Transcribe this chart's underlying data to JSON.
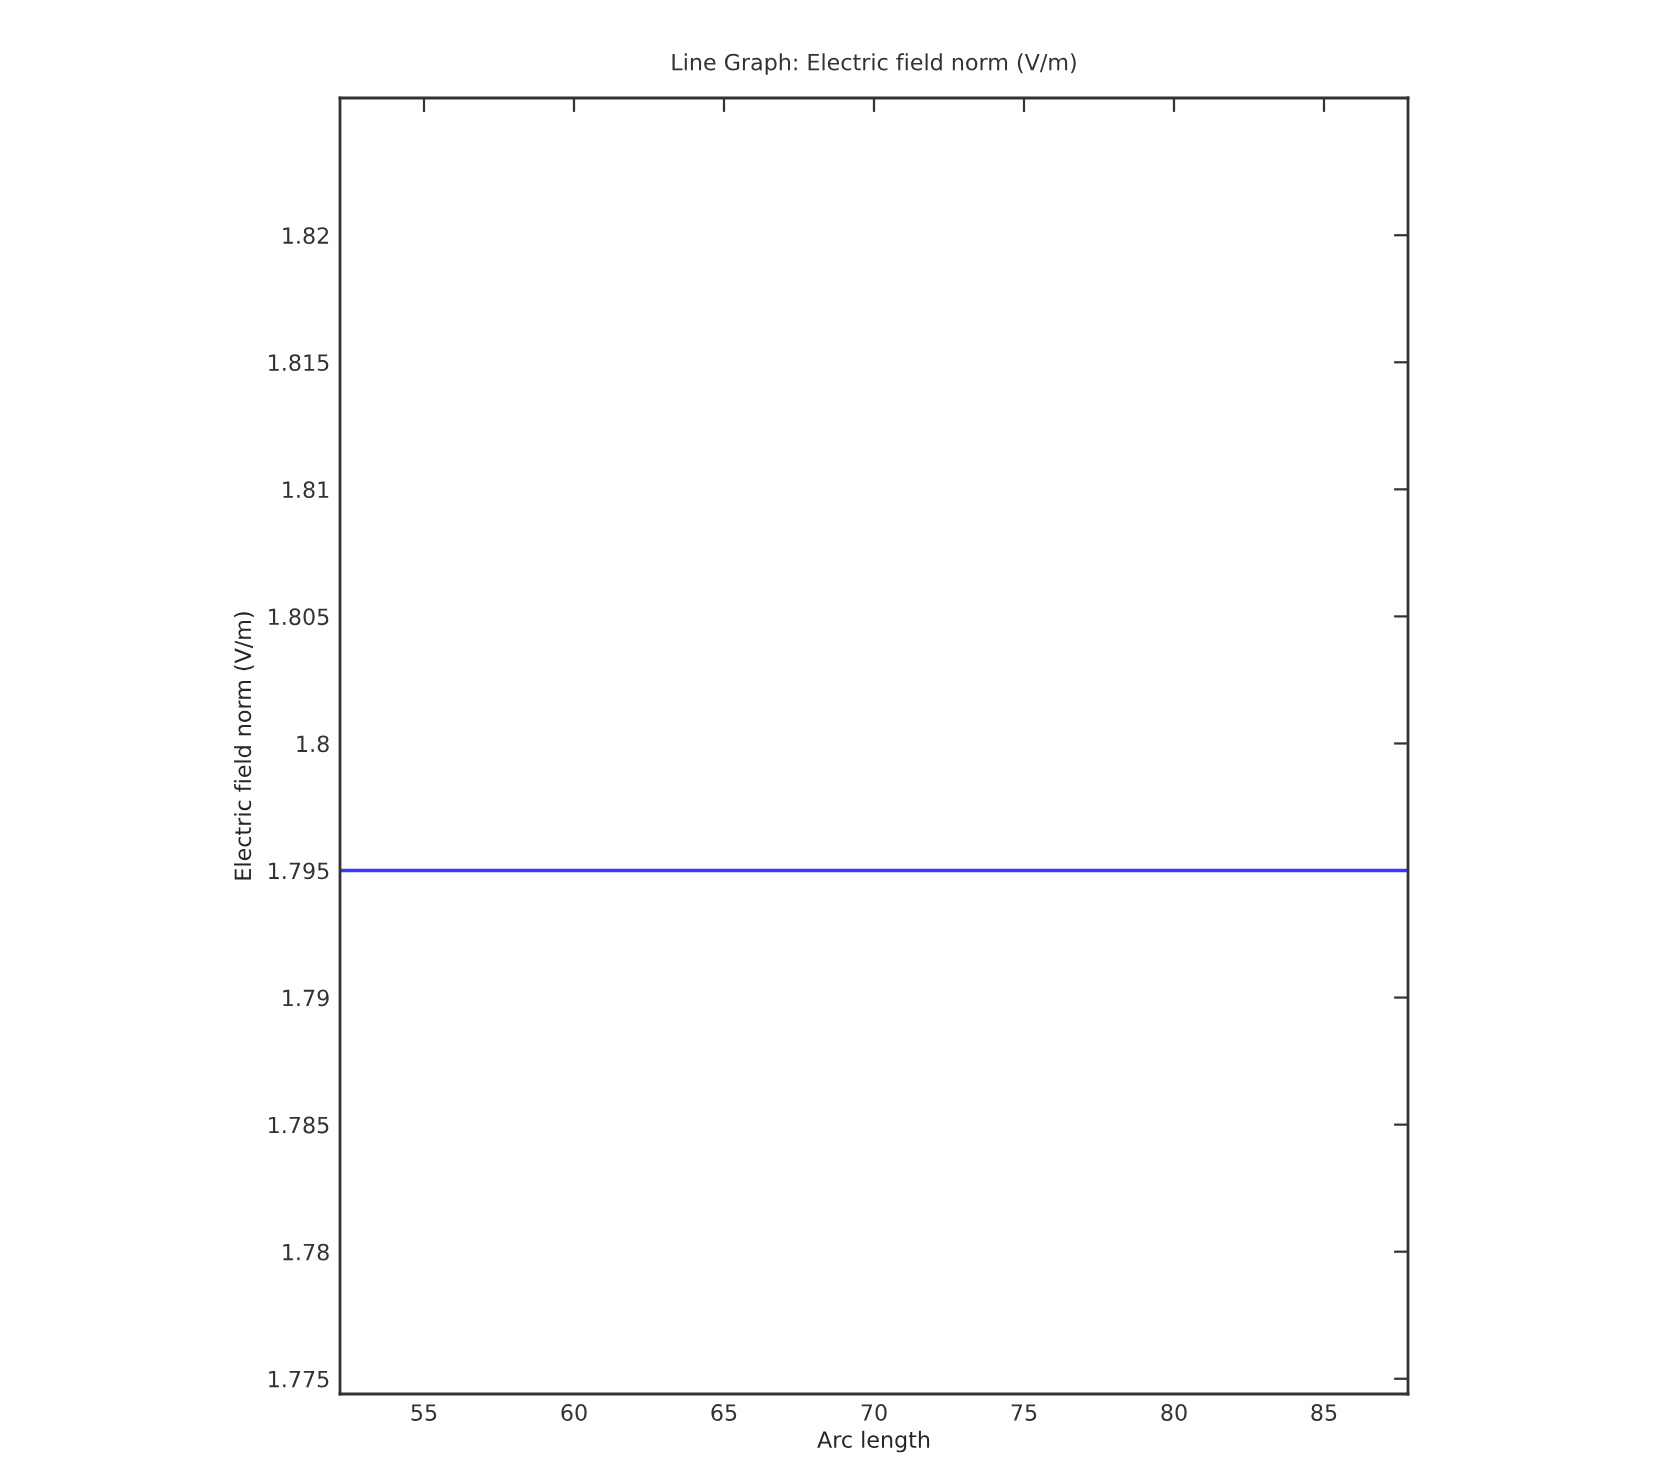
{
  "chart_data": {
    "type": "line",
    "title": "Line Graph: Electric field norm (V/m)",
    "xlabel": "Arc length",
    "ylabel": "Electric field norm (V/m)",
    "series": [
      {
        "color": "#3a3aff",
        "x": [
          52.2,
          87.8
        ],
        "values": [
          1.795,
          1.795
        ]
      }
    ],
    "xlim": [
      52.2,
      87.8
    ],
    "xticks": [
      55,
      60,
      65,
      70,
      75,
      80,
      85
    ],
    "ylim": [
      1.7744,
      1.8254
    ],
    "yticks": [
      1.775,
      1.78,
      1.785,
      1.79,
      1.795,
      1.8,
      1.805,
      1.81,
      1.815,
      1.82
    ],
    "grid": false,
    "legend": false
  }
}
